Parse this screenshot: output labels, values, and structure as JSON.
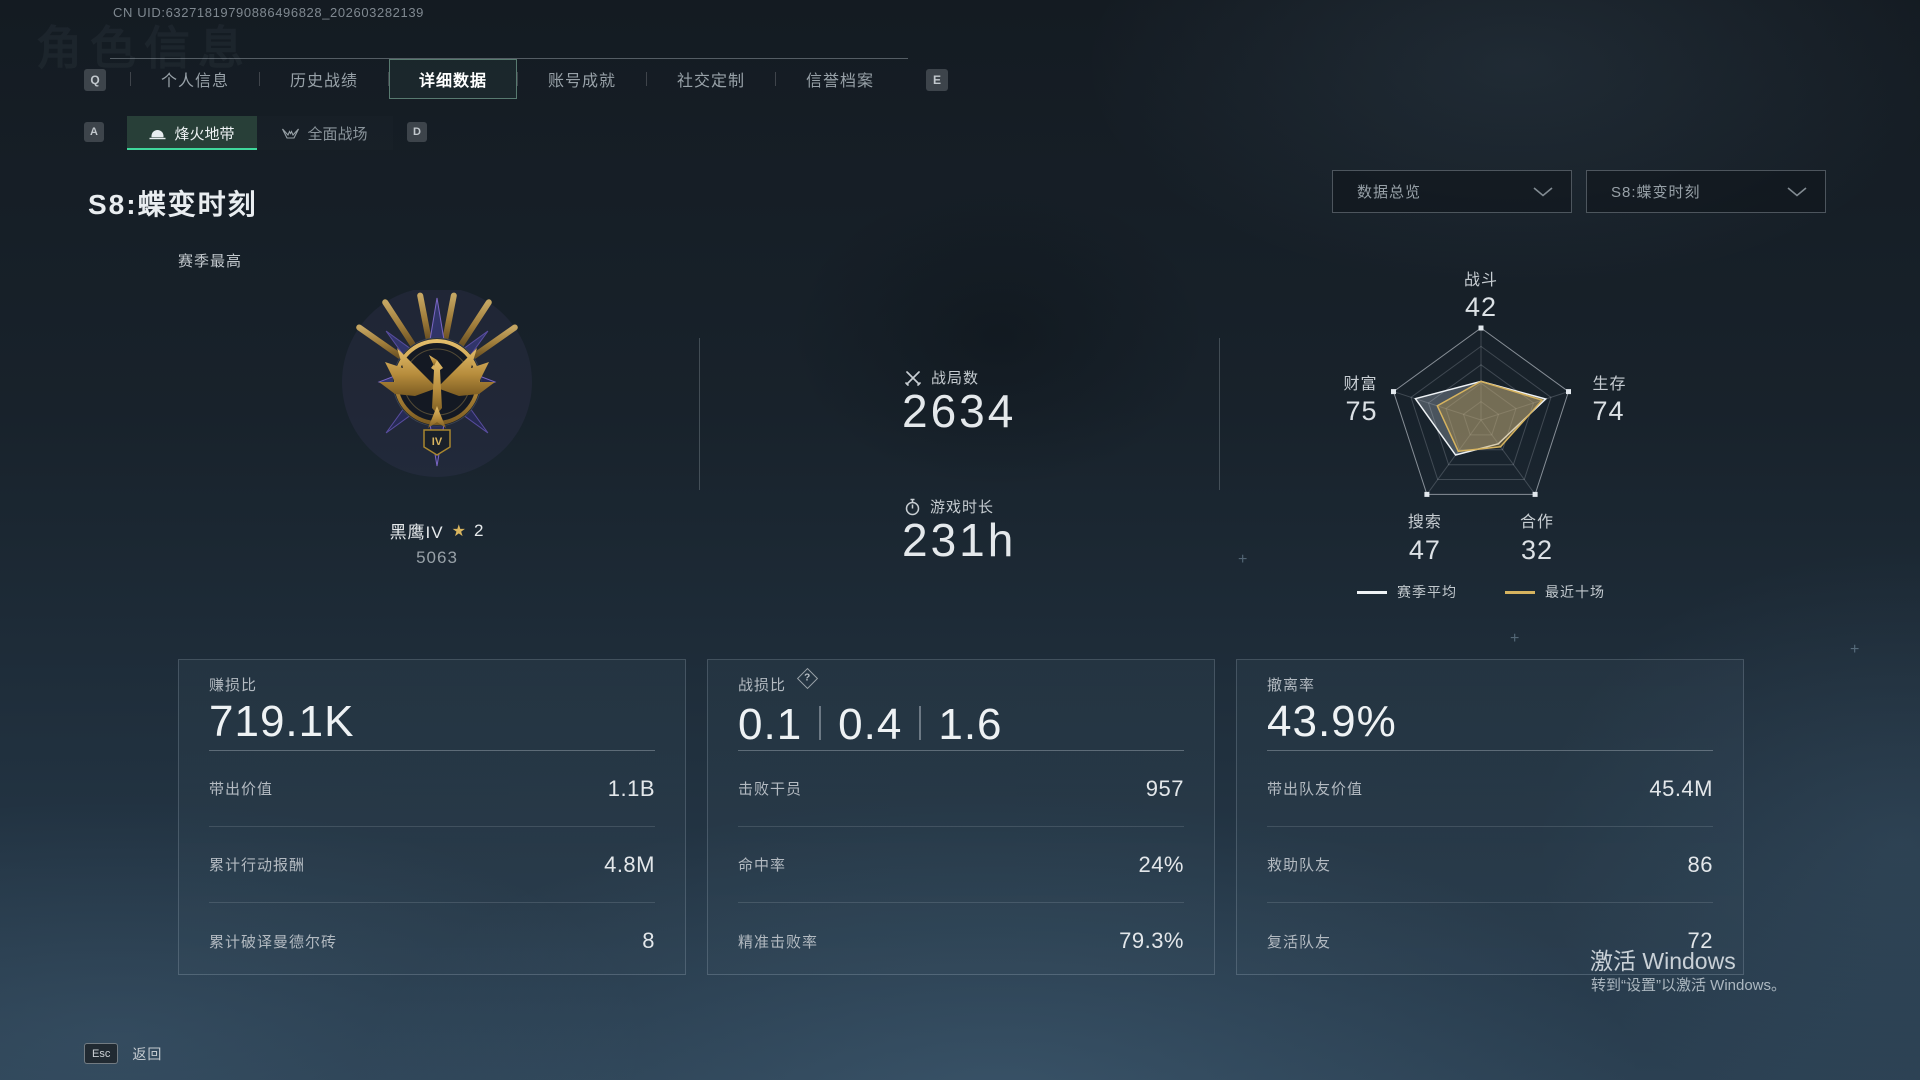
{
  "uid": "CN UID:63271819790886496828_202603282139",
  "watermark": "角色信息",
  "keys": {
    "tab_prev": "Q",
    "tab_next": "E",
    "subtab_prev": "A",
    "subtab_next": "D",
    "back": "Esc"
  },
  "tabs": [
    {
      "label": "个人信息"
    },
    {
      "label": "历史战绩"
    },
    {
      "label": "详细数据",
      "active": true
    },
    {
      "label": "账号成就"
    },
    {
      "label": "社交定制"
    },
    {
      "label": "信誉档案"
    }
  ],
  "subtabs": [
    {
      "label": "烽火地带",
      "active": true
    },
    {
      "label": "全面战场"
    }
  ],
  "page": {
    "title": "S8:蝶变时刻",
    "season_best_label": "赛季最高"
  },
  "filters": {
    "left": "数据总览",
    "right": "S8:蝶变时刻"
  },
  "rank": {
    "name": "黑鹰IV",
    "star_icon": "★",
    "star_count": "2",
    "points": "5063",
    "roman": "IV"
  },
  "summary": [
    {
      "label": "战局数",
      "value": "2634"
    },
    {
      "label": "游戏时长",
      "value": "231h"
    }
  ],
  "chart_data": {
    "type": "radar",
    "title": "",
    "categories": [
      "战斗",
      "生存",
      "合作",
      "搜索",
      "财富"
    ],
    "axis_display_values": [
      42,
      74,
      32,
      47,
      75
    ],
    "max": 100,
    "rings": 5,
    "grid": true,
    "legend_position": "bottom",
    "series": [
      {
        "name": "赛季平均",
        "color": "#eef2f5",
        "fill": "rgba(205,215,225,0.28)",
        "values": [
          42,
          74,
          32,
          47,
          75
        ]
      },
      {
        "name": "最近十场",
        "color": "#d6b35f",
        "fill": "rgba(186,150,70,0.38)",
        "values": [
          42,
          70,
          36,
          42,
          50
        ]
      }
    ]
  },
  "cards": [
    {
      "label": "赚损比",
      "value": "719.1K",
      "rows": [
        {
          "label": "带出价值",
          "value": "1.1B"
        },
        {
          "label": "累计行动报酬",
          "value": "4.8M"
        },
        {
          "label": "累计破译曼德尔砖",
          "value": "8"
        }
      ]
    },
    {
      "label": "战损比",
      "help": "?",
      "values": [
        "0.1",
        "0.4",
        "1.6"
      ],
      "rows": [
        {
          "label": "击败干员",
          "value": "957"
        },
        {
          "label": "命中率",
          "value": "24%"
        },
        {
          "label": "精准击败率",
          "value": "79.3%"
        }
      ]
    },
    {
      "label": "撤离率",
      "value": "43.9%",
      "rows": [
        {
          "label": "带出队友价值",
          "value": "45.4M"
        },
        {
          "label": "救助队友",
          "value": "86"
        },
        {
          "label": "复活队友",
          "value": "72"
        }
      ]
    }
  ],
  "footer": {
    "back": "返回"
  },
  "windows_activation": {
    "line1": "激活 Windows",
    "line2": "转到“设置”以激活 Windows。"
  }
}
